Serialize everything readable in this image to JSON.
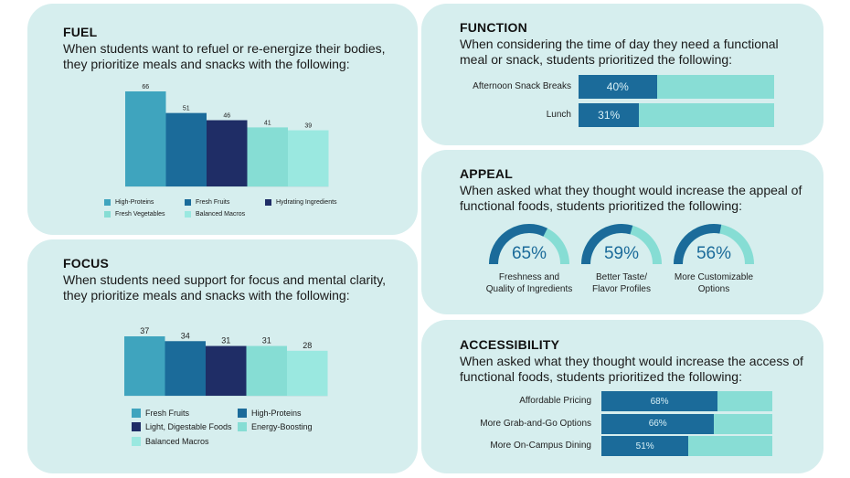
{
  "fuel": {
    "heading": "FUEL",
    "description": "When students want to refuel or re-energize their bodies, they prioritize meals and snacks with the following:"
  },
  "focus": {
    "heading": "FOCUS",
    "description": "When students need support for focus and mental clarity, they prioritize meals and snacks with the following:"
  },
  "function": {
    "heading": "FUNCTION",
    "description": "When considering the time of day they need a functional meal or snack, students prioritized the following:"
  },
  "appeal": {
    "heading": "APPEAL",
    "description": "When asked what they thought would increase the appeal of functional foods, students prioritized the following:"
  },
  "access": {
    "heading": "ACCESSIBILITY",
    "description": "When asked what they thought would increase the access of functional foods, students prioritized the following:"
  },
  "chart_data": [
    {
      "id": "fuel",
      "type": "bar",
      "title": "FUEL",
      "categories": [
        "High-Proteins",
        "Fresh Fruits",
        "Hydrating Ingredients",
        "Fresh Vegetables",
        "Balanced Macros"
      ],
      "values": [
        66,
        51,
        46,
        41,
        39
      ],
      "data_labels": [
        "66",
        "51",
        "46",
        "41",
        "39"
      ],
      "colors": [
        "#3fa4be",
        "#1b6b9a",
        "#1f2d66",
        "#86ddd4",
        "#9ae8e0"
      ],
      "ylim": [
        0,
        66
      ],
      "legend": "bottom"
    },
    {
      "id": "focus",
      "type": "bar",
      "title": "FOCUS",
      "categories": [
        "Fresh Fruits",
        "High-Proteins",
        "Light, Digestable Foods",
        "Energy-Boosting",
        "Balanced Macros"
      ],
      "values": [
        37,
        34,
        31,
        31,
        28
      ],
      "data_labels": [
        "37",
        "34",
        "31",
        "31",
        "28"
      ],
      "colors": [
        "#3fa4be",
        "#1b6b9a",
        "#1f2d66",
        "#86ddd4",
        "#9ae8e0"
      ],
      "ylim": [
        0,
        37
      ],
      "legend": "bottom"
    },
    {
      "id": "function",
      "type": "bar",
      "orientation": "horizontal",
      "title": "FUNCTION",
      "categories": [
        "Afternoon Snack Breaks",
        "Lunch"
      ],
      "values": [
        40,
        31
      ],
      "data_labels": [
        "40%",
        "31%"
      ],
      "unit": "%",
      "xlim": [
        0,
        100
      ]
    },
    {
      "id": "appeal",
      "type": "pie",
      "style": "gauge",
      "title": "APPEAL",
      "categories": [
        "Freshness and Quality of Ingredients",
        "Better Taste/ Flavor Profiles",
        "More Customizable Options"
      ],
      "label_lines": [
        [
          "Freshness and",
          "Quality of Ingredients"
        ],
        [
          "Better Taste/",
          "Flavor Profiles"
        ],
        [
          "More Customizable",
          "Options"
        ]
      ],
      "values": [
        65,
        59,
        56
      ],
      "data_labels": [
        "65%",
        "59%",
        "56%"
      ],
      "unit": "%"
    },
    {
      "id": "access",
      "type": "bar",
      "orientation": "horizontal",
      "title": "ACCESSIBILITY",
      "categories": [
        "Affordable Pricing",
        "More Grab-and-Go Options",
        "More On-Campus Dining"
      ],
      "values": [
        68,
        66,
        51
      ],
      "data_labels": [
        "68%",
        "66%",
        "51%"
      ],
      "unit": "%",
      "xlim": [
        0,
        100
      ]
    }
  ]
}
